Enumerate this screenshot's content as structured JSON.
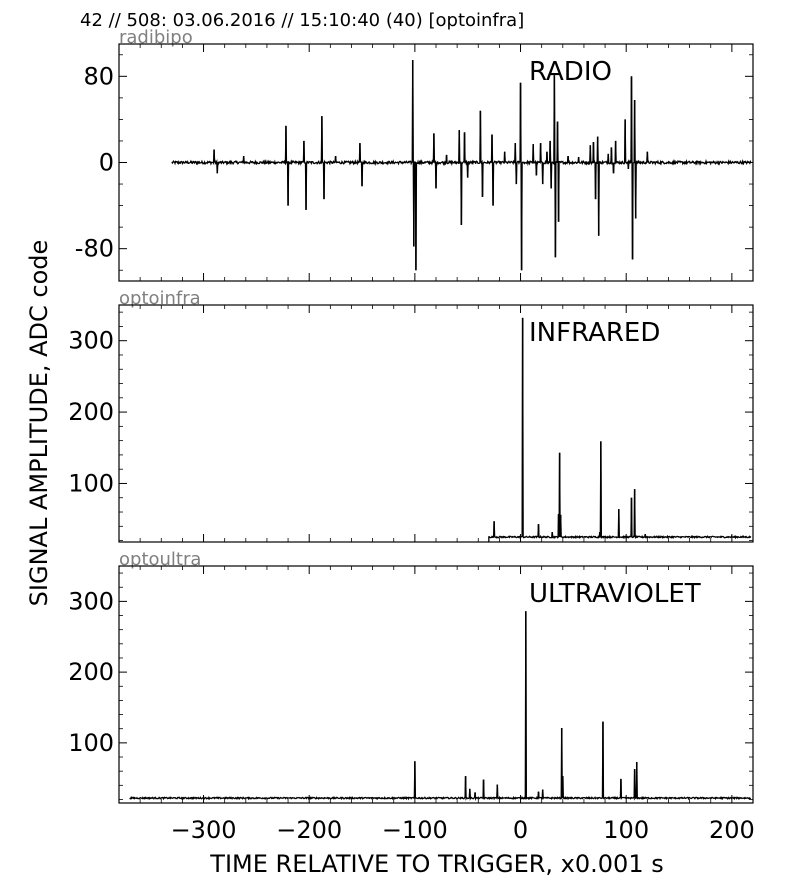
{
  "header": "42 // 508:   03.06.2016 // 15:10:40 (40)  [optoinfra]",
  "ylabel": "SIGNAL AMPLITUDE,  ADC code",
  "xlabel": "TIME RELATIVE TO TRIGGER,   x0.001 s",
  "colors": {
    "line": "#000000",
    "channel_label": "#808080",
    "frame": "#000000"
  },
  "chart_data": [
    {
      "type": "line",
      "channel": "radibipo",
      "title": "RADIO",
      "xlim": [
        -380,
        220
      ],
      "ylim": [
        -110,
        110
      ],
      "x_ticks": [
        -300,
        -200,
        -100,
        0,
        100,
        200
      ],
      "x_tick_labels": [
        "",
        "",
        "",
        "",
        "",
        ""
      ],
      "y_ticks": [
        80,
        0,
        -80
      ],
      "y_tick_labels": [
        "80",
        "0",
        "-80"
      ],
      "baseline": 0,
      "noise": 1.2,
      "x_start": -330,
      "spikes": [
        {
          "x": -290,
          "y": 12
        },
        {
          "x": -287,
          "y": -10
        },
        {
          "x": -262,
          "y": 6
        },
        {
          "x": -222,
          "y": 34
        },
        {
          "x": -220,
          "y": -40
        },
        {
          "x": -205,
          "y": 20
        },
        {
          "x": -203,
          "y": -44
        },
        {
          "x": -188,
          "y": 43
        },
        {
          "x": -186,
          "y": -34
        },
        {
          "x": -175,
          "y": 6
        },
        {
          "x": -152,
          "y": 18
        },
        {
          "x": -150,
          "y": -22
        },
        {
          "x": -102,
          "y": 95
        },
        {
          "x": -101,
          "y": -78
        },
        {
          "x": -99,
          "y": -100
        },
        {
          "x": -82,
          "y": 27
        },
        {
          "x": -80,
          "y": -24
        },
        {
          "x": -70,
          "y": 7
        },
        {
          "x": -58,
          "y": 30
        },
        {
          "x": -56,
          "y": -58
        },
        {
          "x": -53,
          "y": 28
        },
        {
          "x": -50,
          "y": -14
        },
        {
          "x": -38,
          "y": 48
        },
        {
          "x": -36,
          "y": -32
        },
        {
          "x": -27,
          "y": 26
        },
        {
          "x": -26,
          "y": -40
        },
        {
          "x": -15,
          "y": 10
        },
        {
          "x": -5,
          "y": 18
        },
        {
          "x": -4,
          "y": -20
        },
        {
          "x": 0,
          "y": 74
        },
        {
          "x": 1,
          "y": -100
        },
        {
          "x": 12,
          "y": 17
        },
        {
          "x": 15,
          "y": -12
        },
        {
          "x": 19,
          "y": 18
        },
        {
          "x": 21,
          "y": -20
        },
        {
          "x": 25,
          "y": 10
        },
        {
          "x": 28,
          "y": 20
        },
        {
          "x": 29,
          "y": -24
        },
        {
          "x": 32,
          "y": 81
        },
        {
          "x": 33,
          "y": -88
        },
        {
          "x": 35,
          "y": 38
        },
        {
          "x": 36,
          "y": -55
        },
        {
          "x": 45,
          "y": 6
        },
        {
          "x": 55,
          "y": 5
        },
        {
          "x": 66,
          "y": 16
        },
        {
          "x": 69,
          "y": 19
        },
        {
          "x": 71,
          "y": -34
        },
        {
          "x": 73,
          "y": 24
        },
        {
          "x": 74,
          "y": -68
        },
        {
          "x": 83,
          "y": 8
        },
        {
          "x": 86,
          "y": 14
        },
        {
          "x": 88,
          "y": -10
        },
        {
          "x": 90,
          "y": 20
        },
        {
          "x": 99,
          "y": 40
        },
        {
          "x": 102,
          "y": -6
        },
        {
          "x": 105,
          "y": 80
        },
        {
          "x": 106,
          "y": -90
        },
        {
          "x": 108,
          "y": 58
        },
        {
          "x": 109,
          "y": -52
        },
        {
          "x": 120,
          "y": 10
        }
      ]
    },
    {
      "type": "line",
      "channel": "optoinfra",
      "title": "INFRARED",
      "xlim": [
        -380,
        220
      ],
      "ylim": [
        18,
        350
      ],
      "x_ticks": [
        -300,
        -200,
        -100,
        0,
        100,
        200
      ],
      "x_tick_labels": [
        "",
        "",
        "",
        "",
        "",
        ""
      ],
      "y_ticks": [
        100,
        200,
        300
      ],
      "y_tick_labels": [
        "100",
        "200",
        "300"
      ],
      "baseline": 25,
      "noise": 1.0,
      "x_start": -30,
      "spikes": [
        {
          "x": -25,
          "y": 47
        },
        {
          "x": 2,
          "y": 332
        },
        {
          "x": 17,
          "y": 43
        },
        {
          "x": 30,
          "y": 32
        },
        {
          "x": 36,
          "y": 57
        },
        {
          "x": 37,
          "y": 143
        },
        {
          "x": 38,
          "y": 56
        },
        {
          "x": 76,
          "y": 159
        },
        {
          "x": 75,
          "y": 32
        },
        {
          "x": 93,
          "y": 64
        },
        {
          "x": 105,
          "y": 80
        },
        {
          "x": 108,
          "y": 92
        },
        {
          "x": 118,
          "y": 29
        }
      ]
    },
    {
      "type": "line",
      "channel": "optoultra",
      "title": "ULTRAVIOLET",
      "xlim": [
        -380,
        220
      ],
      "ylim": [
        15,
        350
      ],
      "x_ticks": [
        -300,
        -200,
        -100,
        0,
        100,
        200
      ],
      "x_tick_labels": [
        "−300",
        "−200",
        "−100",
        "0",
        "100",
        "200"
      ],
      "y_ticks": [
        100,
        200,
        300
      ],
      "y_tick_labels": [
        "100",
        "200",
        "300"
      ],
      "baseline": 22,
      "noise": 1.0,
      "x_start": -370,
      "spikes": [
        {
          "x": -100,
          "y": 74
        },
        {
          "x": -52,
          "y": 53
        },
        {
          "x": -48,
          "y": 35
        },
        {
          "x": -43,
          "y": 30
        },
        {
          "x": -35,
          "y": 48
        },
        {
          "x": -22,
          "y": 41
        },
        {
          "x": 5,
          "y": 286
        },
        {
          "x": 17,
          "y": 31
        },
        {
          "x": 21,
          "y": 34
        },
        {
          "x": 39,
          "y": 121
        },
        {
          "x": 40,
          "y": 53
        },
        {
          "x": 78,
          "y": 130
        },
        {
          "x": 95,
          "y": 49
        },
        {
          "x": 108,
          "y": 63
        },
        {
          "x": 110,
          "y": 73
        }
      ]
    }
  ]
}
